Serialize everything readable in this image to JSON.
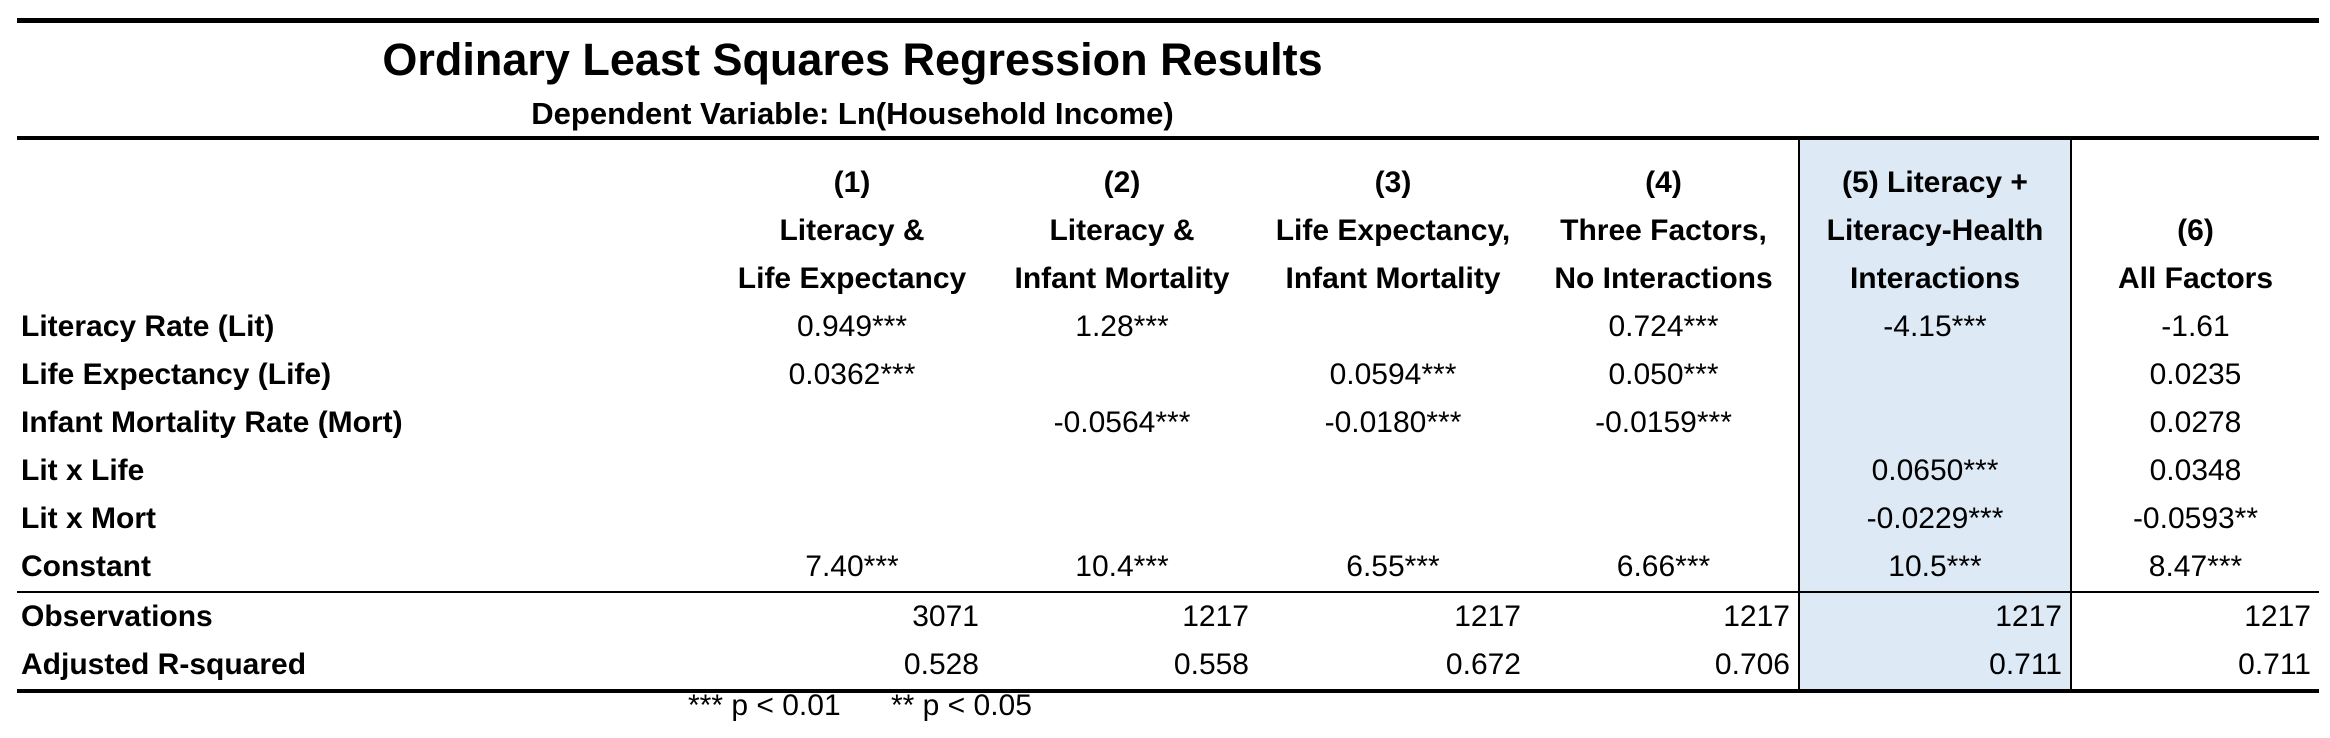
{
  "title": "Ordinary Least Squares Regression Results",
  "subtitle": "Dependent Variable:  Ln(Household Income)",
  "columns": [
    {
      "lines": [
        "(1)",
        "Literacy &",
        "Life Expectancy"
      ]
    },
    {
      "lines": [
        "(2)",
        "Literacy &",
        "Infant Mortality"
      ]
    },
    {
      "lines": [
        "(3)",
        "Life Expectancy,",
        "Infant Mortality"
      ]
    },
    {
      "lines": [
        "(4)",
        "Three Factors,",
        "No Interactions"
      ]
    },
    {
      "lines": [
        "(5) Literacy +",
        "Literacy-Health",
        "Interactions"
      ]
    },
    {
      "lines": [
        "",
        "(6)",
        "All Factors"
      ]
    }
  ],
  "coef_rows": [
    {
      "label": "Literacy Rate (Lit)",
      "values": [
        "0.949***",
        "1.28***",
        "",
        "0.724***",
        "-4.15***",
        "-1.61"
      ]
    },
    {
      "label": "Life Expectancy (Life)",
      "values": [
        "0.0362***",
        "",
        "0.0594***",
        "0.050***",
        "",
        "0.0235"
      ]
    },
    {
      "label": "Infant Mortality Rate (Mort)",
      "values": [
        "",
        "-0.0564***",
        "-0.0180***",
        "-0.0159***",
        "",
        "0.0278"
      ]
    },
    {
      "label": "Lit x Life",
      "values": [
        "",
        "",
        "",
        "",
        "0.0650***",
        "0.0348"
      ]
    },
    {
      "label": "Lit x Mort",
      "values": [
        "",
        "",
        "",
        "",
        "-0.0229***",
        "-0.0593**"
      ]
    },
    {
      "label": "Constant",
      "values": [
        "7.40***",
        "10.4***",
        "6.55***",
        "6.66***",
        "10.5***",
        "8.47***"
      ]
    }
  ],
  "stat_rows": [
    {
      "label": "Observations",
      "values": [
        "3071",
        "1217",
        "1217",
        "1217",
        "1217",
        "1217"
      ]
    },
    {
      "label": "Adjusted R-squared",
      "values": [
        "0.528",
        "0.558",
        "0.672",
        "0.706",
        "0.711",
        "0.711"
      ]
    }
  ],
  "footnotes": [
    "*** p < 0.01",
    "** p < 0.05"
  ],
  "colors": {
    "highlight": "#dde9f5",
    "rule": "#000000"
  }
}
